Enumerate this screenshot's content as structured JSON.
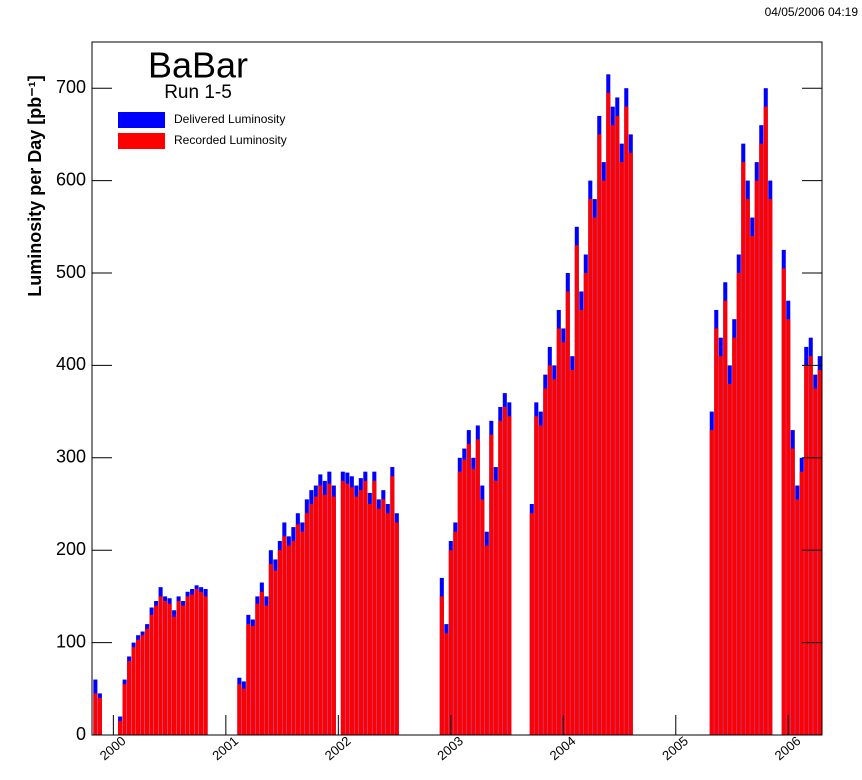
{
  "chart_data": {
    "type": "bar",
    "title": "BaBar",
    "subtitle": "Run 1-5",
    "timestamp": "04/05/2006 04:19",
    "y_label": "Luminosity per Day [pb⁻¹]",
    "xlim": [
      1999.81,
      2006.3
    ],
    "xticks": [
      2000,
      2001,
      2002,
      2003,
      2004,
      2005,
      2006
    ],
    "ylim": [
      0,
      750
    ],
    "yticks": [
      0,
      100,
      200,
      300,
      400,
      500,
      600,
      700
    ],
    "legend": "upper-left",
    "x": [
      1999.84,
      1999.88,
      2000.06,
      2000.1,
      2000.14,
      2000.18,
      2000.22,
      2000.26,
      2000.3,
      2000.34,
      2000.38,
      2000.42,
      2000.46,
      2000.5,
      2000.54,
      2000.58,
      2000.62,
      2000.66,
      2000.7,
      2000.74,
      2000.78,
      2000.82,
      2001.12,
      2001.16,
      2001.2,
      2001.24,
      2001.28,
      2001.32,
      2001.36,
      2001.4,
      2001.44,
      2001.48,
      2001.52,
      2001.56,
      2001.6,
      2001.64,
      2001.68,
      2001.72,
      2001.76,
      2001.8,
      2001.84,
      2001.88,
      2001.92,
      2001.96,
      2002.04,
      2002.08,
      2002.12,
      2002.16,
      2002.2,
      2002.24,
      2002.28,
      2002.32,
      2002.36,
      2002.4,
      2002.44,
      2002.48,
      2002.52,
      2002.92,
      2002.96,
      2003.0,
      2003.04,
      2003.08,
      2003.12,
      2003.16,
      2003.2,
      2003.24,
      2003.28,
      2003.32,
      2003.36,
      2003.4,
      2003.44,
      2003.48,
      2003.52,
      2003.72,
      2003.76,
      2003.8,
      2003.84,
      2003.88,
      2003.92,
      2003.96,
      2004.0,
      2004.04,
      2004.08,
      2004.12,
      2004.16,
      2004.2,
      2004.24,
      2004.28,
      2004.32,
      2004.36,
      2004.4,
      2004.44,
      2004.48,
      2004.52,
      2004.56,
      2004.6,
      2005.32,
      2005.36,
      2005.4,
      2005.44,
      2005.48,
      2005.52,
      2005.56,
      2005.6,
      2005.64,
      2005.68,
      2005.72,
      2005.76,
      2005.8,
      2005.84,
      2005.96,
      2006.0,
      2006.04,
      2006.08,
      2006.12,
      2006.16,
      2006.2,
      2006.24,
      2006.28
    ],
    "series": [
      {
        "name": "Delivered Luminosity",
        "color": "#0000ff",
        "values": [
          60,
          45,
          20,
          60,
          85,
          100,
          108,
          112,
          120,
          138,
          145,
          160,
          150,
          148,
          135,
          150,
          145,
          155,
          158,
          162,
          160,
          158,
          62,
          58,
          130,
          125,
          150,
          165,
          150,
          200,
          190,
          210,
          230,
          215,
          225,
          240,
          230,
          255,
          265,
          270,
          282,
          275,
          285,
          270,
          285,
          284,
          280,
          270,
          278,
          285,
          262,
          285,
          255,
          265,
          250,
          290,
          240,
          170,
          120,
          210,
          230,
          300,
          310,
          330,
          300,
          335,
          270,
          220,
          340,
          290,
          355,
          370,
          360,
          250,
          360,
          350,
          390,
          420,
          400,
          460,
          440,
          500,
          410,
          550,
          480,
          520,
          600,
          580,
          670,
          620,
          715,
          680,
          690,
          640,
          700,
          650,
          350,
          460,
          430,
          490,
          400,
          450,
          520,
          640,
          600,
          560,
          620,
          660,
          700,
          600,
          525,
          470,
          330,
          270,
          300,
          420,
          430,
          390,
          410
        ]
      },
      {
        "name": "Recorded Luminosity",
        "color": "#ff0000",
        "values": [
          45,
          40,
          15,
          55,
          80,
          95,
          103,
          108,
          115,
          130,
          140,
          150,
          145,
          142,
          128,
          145,
          140,
          150,
          152,
          158,
          155,
          150,
          55,
          50,
          120,
          118,
          142,
          155,
          140,
          185,
          178,
          200,
          215,
          205,
          210,
          228,
          220,
          240,
          250,
          258,
          270,
          260,
          272,
          258,
          275,
          272,
          268,
          258,
          265,
          275,
          250,
          275,
          245,
          255,
          240,
          280,
          230,
          150,
          110,
          200,
          220,
          285,
          298,
          315,
          288,
          320,
          255,
          205,
          325,
          275,
          340,
          355,
          345,
          240,
          345,
          335,
          375,
          400,
          385,
          440,
          425,
          480,
          395,
          530,
          460,
          500,
          580,
          560,
          650,
          600,
          695,
          660,
          670,
          620,
          680,
          630,
          330,
          440,
          410,
          470,
          380,
          430,
          500,
          620,
          580,
          540,
          600,
          640,
          680,
          580,
          505,
          450,
          310,
          255,
          285,
          400,
          410,
          375,
          395
        ]
      }
    ]
  }
}
